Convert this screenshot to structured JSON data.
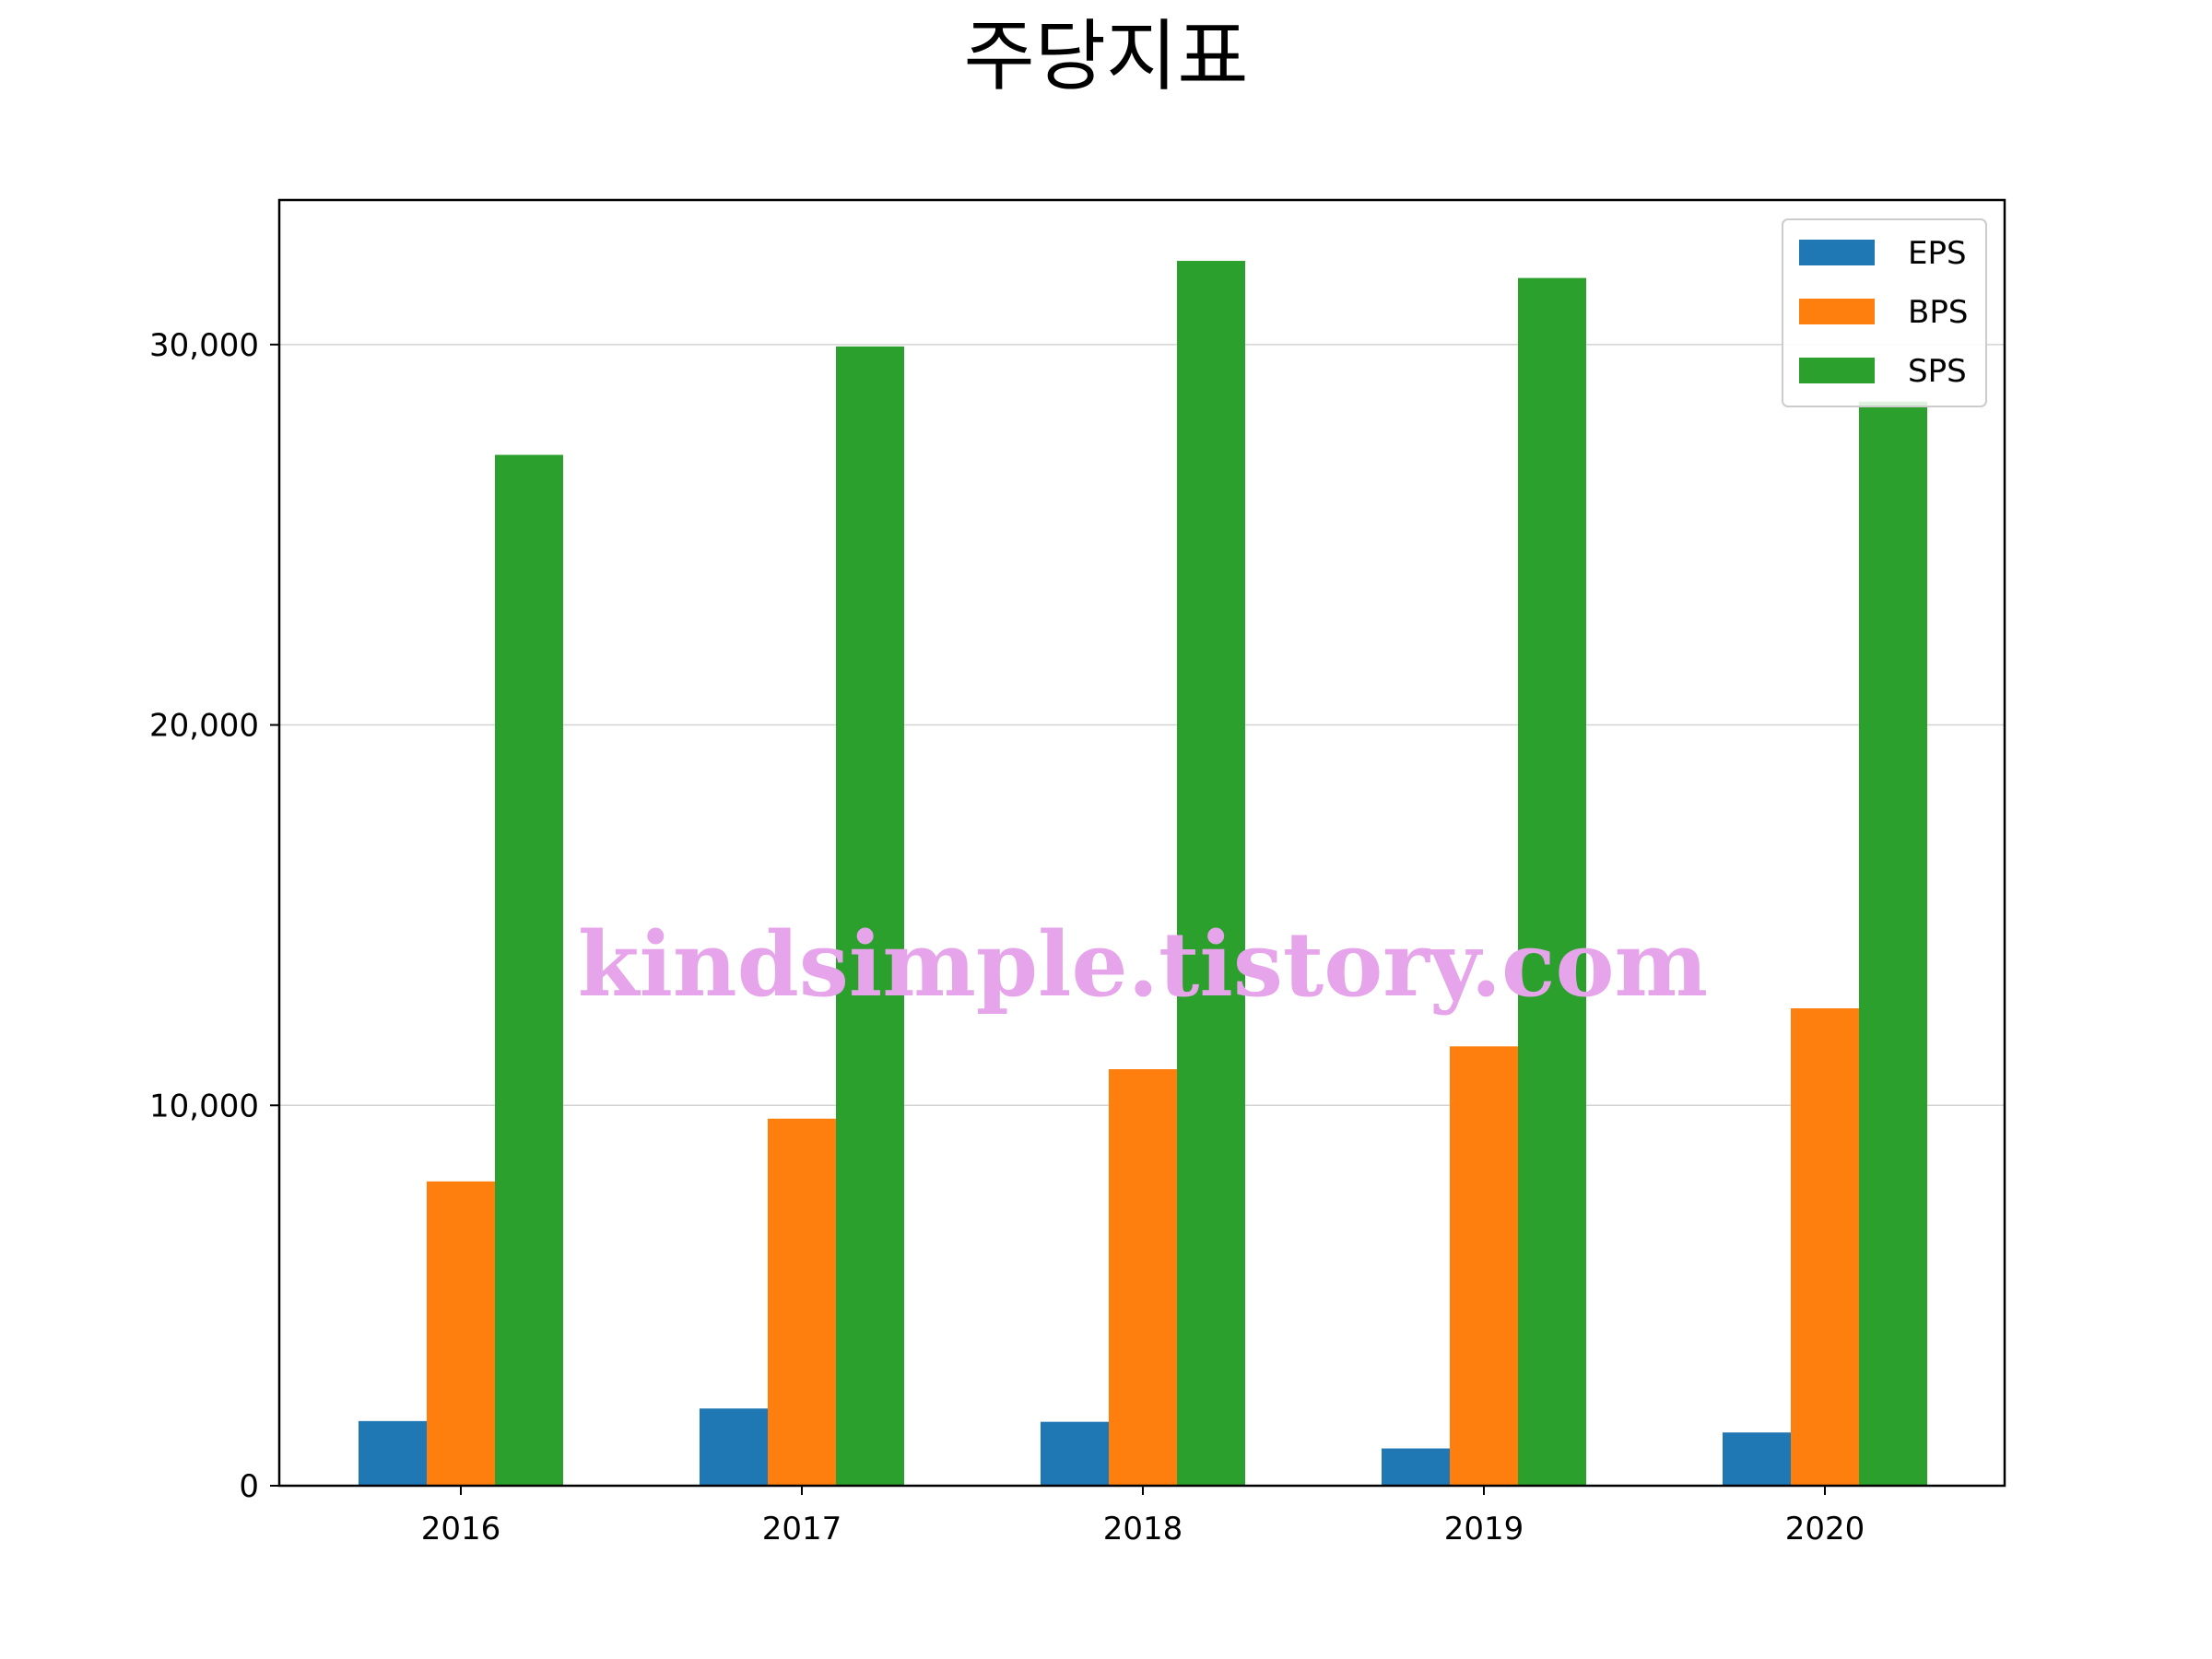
{
  "chart_data": {
    "type": "bar",
    "title": "주당지표",
    "xlabel": "",
    "ylabel": "",
    "categories": [
      "2016",
      "2017",
      "2018",
      "2019",
      "2020"
    ],
    "series": [
      {
        "name": "EPS",
        "color": "#1f77b4",
        "values": [
          1700,
          2030,
          1680,
          980,
          1400
        ]
      },
      {
        "name": "BPS",
        "color": "#ff7f0e",
        "values": [
          8000,
          9650,
          10950,
          11550,
          12550
        ]
      },
      {
        "name": "SPS",
        "color": "#2ca02c",
        "values": [
          27100,
          29950,
          32200,
          31750,
          28500
        ]
      }
    ],
    "ylim": [
      0,
      33800
    ],
    "yticks": [
      0,
      10000,
      20000,
      30000
    ],
    "ytick_labels": [
      "0",
      "10,000",
      "20,000",
      "30,000"
    ],
    "grid": {
      "y": true,
      "x": false
    },
    "legend_position": "top-right"
  },
  "watermark": {
    "text": "kindsimple.tistory.com",
    "color": "#e6a4ea"
  }
}
